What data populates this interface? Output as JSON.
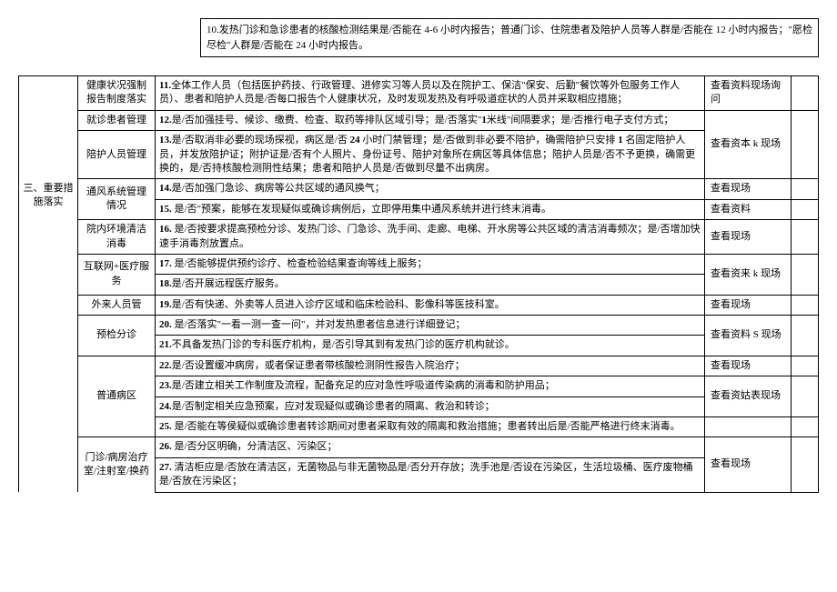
{
  "topBox": "10.发热门诊和急诊患者的核酸检测结果是/否能在 4-6 小时内报告；普通门诊、住院患者及陪护人员等人群是/否能在 12 小时内报告；\"愿检尽检\"人群是/否能在 24 小时内报告。",
  "section1": "三、重要措施落实",
  "cat_health": "健康状况强制报告制度落实",
  "row11": "11.全体工作人员（包括医护药技、行政管理、进修实习等人员以及在院护工、保洁\"保安、后勤\"餐饮等外包服务工作人员）、患者和陪护人员是/否每口报告个人健康状况，及时发现发热及有呼吸道症状的人员并采取相应措施；",
  "check11": "查看资料现场询问",
  "cat_patient": "就诊患者管理",
  "row12": "12.是/否加强挂号、候诊、缴费、检查、取药等排队区域引导；是/否落实\"1米线\"间隔要求；是/否推行电子支付方式；",
  "check12": "查看资本 k 现场",
  "cat_escort": "陪护人员管理",
  "row13": "13.是/否取消非必要的现场探视，病区是/否 24 小时门禁管理；是/否做到非必要不陪护，确需陪护只安排 1 名固定陪护人员，并发放陪护证；附护证是/否有个人照片、身份证号、陪护对象所在病区等具体信息；陪护人员是/否不予更换，确需更换的，是/否持核酸检测阴性结果；患者和陪护人员是/否做到尽量不出病房。",
  "cat_vent": "通风系统管理情况",
  "row14": "14.是/否加强门急诊、病房等公共区域的通风换气；",
  "check14": "查看现场",
  "row15": "15. 是/否\"预案，能够在发现疑似或确诊病例后，立即停用集中通风系统并进行终末消毒。",
  "check15": "查看资料",
  "cat_clean": "院内环境清洁消毒",
  "row16": "16. 是/否按要求提高预检分诊、发热门诊、门急诊、洗手间、走廊、电梯、开水房等公共区域的清洁消毒频次；是/否增加快速手消毒剂放置点。",
  "check16": "查看现场",
  "cat_net": "互联网+医疗服务",
  "row17": "17. 是/否能够提供预约诊疗、检查检验结果查询等线上服务；",
  "check17": "查看资来 k 现场",
  "row18": "18.是/否开展远程医疗服务。",
  "cat_outside": "外来人员管",
  "row19": "19.是/否有快递、外卖等人员进入诊疗区域和临床检验科、影像科等医技科室。",
  "check19": "查看现场",
  "cat_presort": "预检分诊",
  "row20": "20. 是/否落实\"一看一测一查一问\"，并对发热患者信息进行详细登记；",
  "check20": "查看资料 S 现场",
  "row21": "21.不具备发热门诊的专科医疗机构，是/否引导其到有发热门诊的医疗机构就诊。",
  "cat_ward": "普通病区",
  "row22": "22.是/否设置缓冲病房，或者保证患者带核酸检测阴性报告入院治疗；",
  "check22": "查看现场",
  "row23": "23.是/否建立相关工作制度及流程，配备充足的应对急性呼吸道传染病的消毒和防护用品；",
  "check23": "查看资姑表现场",
  "row24": "24.是/否制定相关应急预案，应对发现疑似或确诊患者的隔离、救治和转诊；",
  "row25": "25. 是/否能在等侯疑似或确诊患者转诊期间对患者采取有效的隔离和救治措施；患者转出后是/否能严格进行终末消毒。",
  "cat_room": "门诊/病房治疗室/注射室/换药",
  "row26": "26. 是/否分区明确，分清洁区、污染区；",
  "check26": "查看现场",
  "row27": "27. 清洁柜应是/否放在清洁区，无菌物品与非无菌物品是/否分开存放；洗手池是/否设在污染区，生活垃圾桶、医疗废物桶是/否放在污染区；"
}
